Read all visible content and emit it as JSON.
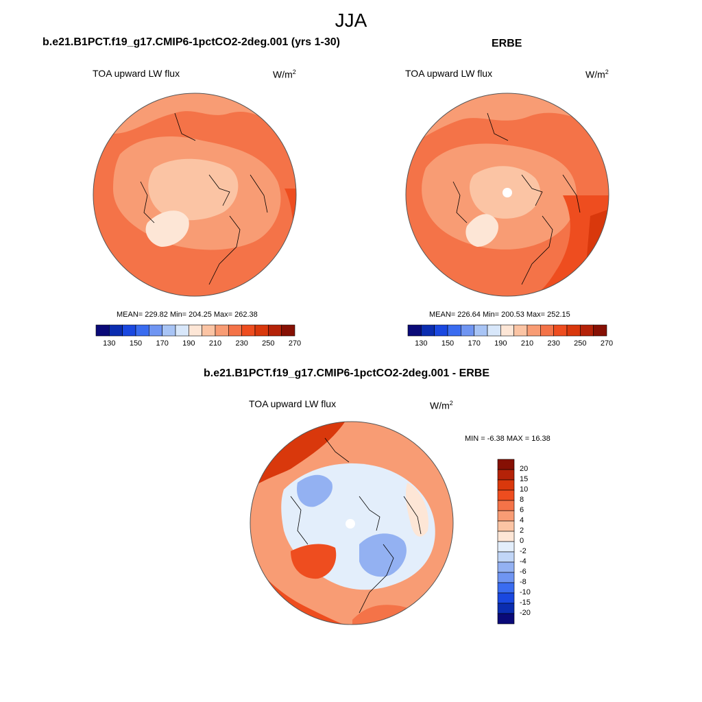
{
  "season": "JJA",
  "units_base": "W/m",
  "units_exp": "2",
  "variable": "TOA upward LW flux",
  "panels": {
    "model": {
      "title": "b.e21.B1PCT.f19_g17.CMIP6-1pctCO2-2deg.001 (yrs 1-30)",
      "stats": "MEAN= 229.82  Min= 204.25  Max= 262.38"
    },
    "obs": {
      "title": "ERBE",
      "stats": "MEAN= 226.64  Min= 200.53  Max= 252.15"
    },
    "diff": {
      "title": "b.e21.B1PCT.f19_g17.CMIP6-1pctCO2-2deg.001 - ERBE",
      "stats": "MIN =  -6.38 MAX =  16.38"
    }
  },
  "colorbar_abs": {
    "labels": [
      "130",
      "150",
      "170",
      "190",
      "210",
      "230",
      "250",
      "270"
    ],
    "colors": [
      "#0a0a78",
      "#0b2db0",
      "#1a48e0",
      "#3a6cf0",
      "#6f95f2",
      "#a8c4f5",
      "#d8e7fa",
      "#fde6d6",
      "#fbc4a4",
      "#f89c74",
      "#f47348",
      "#ee4d1f",
      "#d9380c",
      "#b42208",
      "#861004"
    ]
  },
  "colorbar_diff": {
    "labels": [
      "20",
      "15",
      "10",
      "8",
      "6",
      "4",
      "2",
      "0",
      "-2",
      "-4",
      "-6",
      "-8",
      "-10",
      "-15",
      "-20"
    ],
    "colors": [
      "#861004",
      "#b42208",
      "#d9380c",
      "#ee4d1f",
      "#f47348",
      "#f89c74",
      "#fbc4a4",
      "#fde6d6",
      "#e3eefb",
      "#c1d6f7",
      "#93b1f2",
      "#6f95f2",
      "#3a6cf0",
      "#1a48e0",
      "#0b2db0",
      "#0a0a78"
    ]
  }
}
